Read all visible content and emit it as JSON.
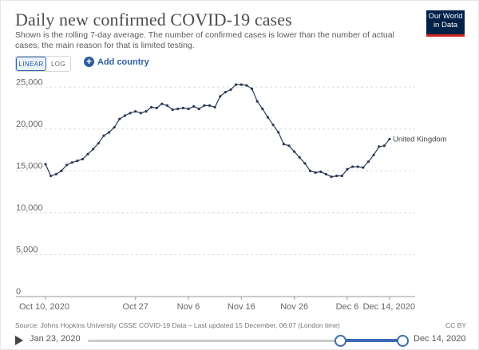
{
  "header": {
    "title": "Daily new confirmed COVID-19 cases",
    "subtitle": "Shown is the rolling 7-day average. The number of confirmed cases is lower than the number of actual cases; the main reason for that is limited testing.",
    "logo_line1": "Our World",
    "logo_line2": "in Data"
  },
  "controls": {
    "linear_label": "LINEAR",
    "log_label": "LOG",
    "add_country_label": "Add country"
  },
  "footer": {
    "source": "Source: Johns Hopkins University CSSE COVID-19 Data – Last updated 15 December, 06:07 (London time)",
    "license": "CC BY"
  },
  "timeline": {
    "start_label": "Jan 23, 2020",
    "end_label": "Dec 14, 2020"
  },
  "colors": {
    "line": "#2a3a55",
    "grid": "#dddddd",
    "accent": "#3b6bb5",
    "brand": "#002147"
  },
  "chart_data": {
    "type": "line",
    "title": "Daily new confirmed COVID-19 cases",
    "x_start": "2020-10-10",
    "x_end": "2020-12-14",
    "x_tick_labels": [
      "Oct 10, 2020",
      "Oct 27",
      "Nov 6",
      "Nov 16",
      "Nov 26",
      "Dec 6",
      "Dec 14, 2020"
    ],
    "x_tick_dates": [
      "2020-10-10",
      "2020-10-27",
      "2020-11-06",
      "2020-11-16",
      "2020-11-26",
      "2020-12-06",
      "2020-12-14"
    ],
    "y_ticks": [
      0,
      5000,
      10000,
      15000,
      20000,
      25000
    ],
    "y_tick_labels": [
      "0",
      "5,000",
      "10,000",
      "15,000",
      "20,000",
      "25,000"
    ],
    "ylim": [
      0,
      25500
    ],
    "grid": "horizontal dashed",
    "series": [
      {
        "name": "United Kingdom",
        "values": [
          15800,
          14400,
          14600,
          15000,
          15700,
          16000,
          16200,
          16400,
          17000,
          17600,
          18300,
          19200,
          19600,
          20200,
          21200,
          21600,
          21900,
          22100,
          21900,
          22100,
          22600,
          22500,
          23000,
          22800,
          22300,
          22400,
          22500,
          22400,
          22700,
          22400,
          22800,
          22800,
          22600,
          23900,
          24400,
          24700,
          25300,
          25300,
          25200,
          24800,
          23300,
          22400,
          21400,
          20500,
          19600,
          18200,
          18000,
          17300,
          16600,
          15900,
          15000,
          14800,
          14900,
          14600,
          14300,
          14400,
          14400,
          15200,
          15500,
          15500,
          15400,
          16100,
          16900,
          17900,
          18000,
          18800
        ]
      }
    ]
  }
}
